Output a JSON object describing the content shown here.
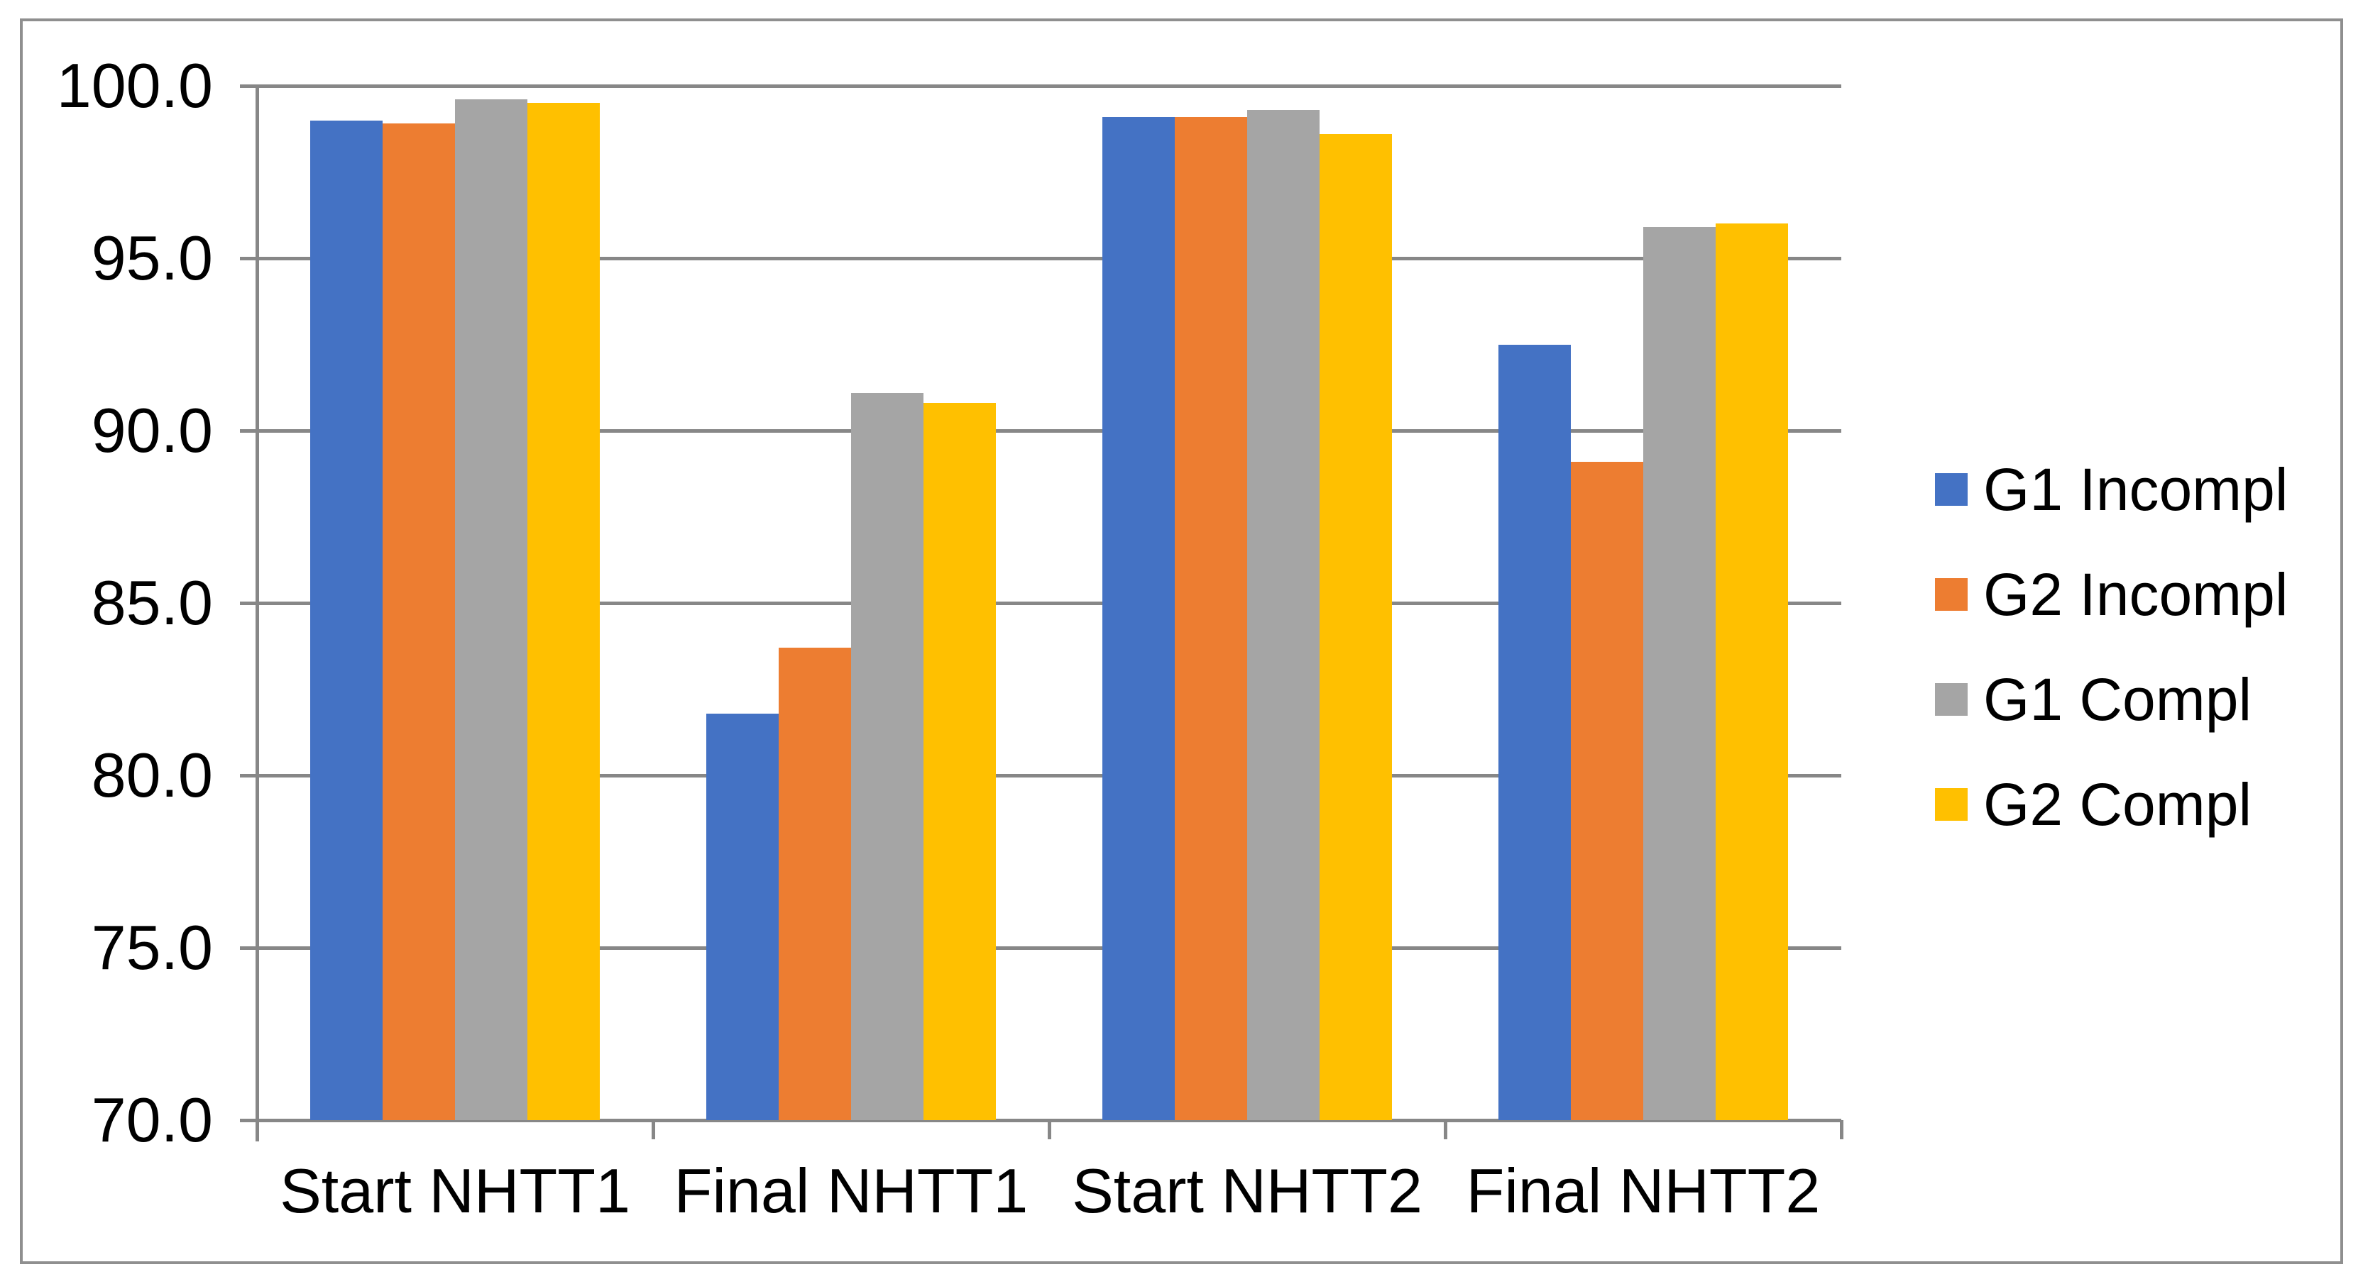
{
  "chart_data": {
    "type": "bar",
    "title": "",
    "xlabel": "",
    "ylabel": "",
    "categories": [
      "Start NHTT1",
      "Final NHTT1",
      "Start NHTT2",
      "Final NHTT2"
    ],
    "series": [
      {
        "name": "G1 Incompl",
        "color": "#4472C4",
        "values": [
          99.0,
          81.8,
          99.1,
          92.5
        ]
      },
      {
        "name": "G2 Incompl",
        "color": "#ED7D31",
        "values": [
          98.9,
          83.7,
          99.1,
          89.1
        ]
      },
      {
        "name": "G1 Compl",
        "color": "#A5A5A5",
        "values": [
          99.6,
          91.1,
          99.3,
          95.9
        ]
      },
      {
        "name": "G2 Compl",
        "color": "#FFC000",
        "values": [
          99.5,
          90.8,
          98.6,
          96.0
        ]
      }
    ],
    "ylim": [
      70,
      100
    ],
    "ytick_step": 5,
    "ytick_labels": [
      "100.0",
      "95.0",
      "90.0",
      "85.0",
      "80.0",
      "75.0",
      "70.0"
    ],
    "grid": true,
    "legend_position": "right",
    "legend_entries": [
      "G1 Incompl",
      "G2 Incompl",
      "G1 Compl",
      "G2 Compl"
    ]
  },
  "style_colors": {
    "grid_axis_gray": "#878787",
    "border_gray": "#8F8F8F",
    "text": "#000000",
    "background": "#FFFFFF"
  }
}
